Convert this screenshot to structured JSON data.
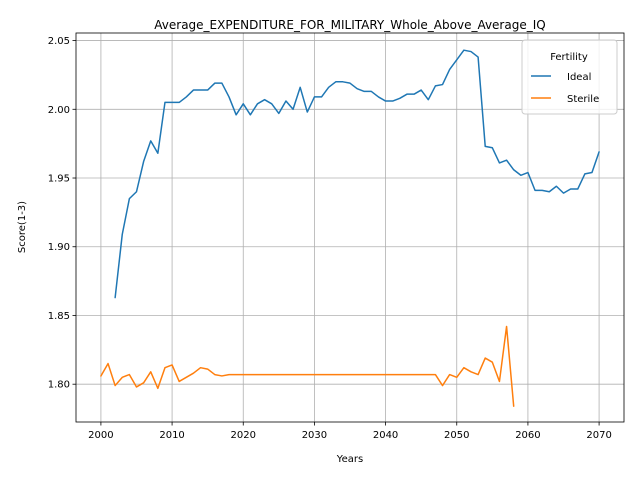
{
  "chart_data": {
    "type": "line",
    "title": "Average_EXPENDITURE_FOR_MILITARY_Whole_Above_Average_IQ",
    "xlabel": "Years",
    "ylabel": "Score(1-3)",
    "xlim": [
      1996.5,
      2073.5
    ],
    "ylim": [
      1.7725,
      2.0555
    ],
    "xticks": [
      2000,
      2010,
      2020,
      2030,
      2040,
      2050,
      2060,
      2070
    ],
    "yticks": [
      1.8,
      1.85,
      1.9,
      1.95,
      2.0,
      2.05
    ],
    "ytick_labels": [
      "1.80",
      "1.85",
      "1.90",
      "1.95",
      "2.00",
      "2.05"
    ],
    "grid": true,
    "legend": {
      "title": "Fertility",
      "placement": "top-right"
    },
    "series": [
      {
        "name": "Ideal",
        "color": "#1f77b4",
        "x": [
          2002,
          2003,
          2004,
          2005,
          2006,
          2007,
          2008,
          2009,
          2010,
          2011,
          2012,
          2013,
          2014,
          2015,
          2016,
          2017,
          2018,
          2019,
          2020,
          2021,
          2022,
          2023,
          2024,
          2025,
          2026,
          2027,
          2028,
          2029,
          2030,
          2031,
          2032,
          2033,
          2034,
          2035,
          2036,
          2037,
          2038,
          2039,
          2040,
          2041,
          2042,
          2043,
          2044,
          2045,
          2046,
          2047,
          2048,
          2049,
          2050,
          2051,
          2052,
          2053,
          2054,
          2055,
          2056,
          2057,
          2058,
          2059,
          2060,
          2061,
          2062,
          2063,
          2064,
          2065,
          2066,
          2067,
          2068,
          2069,
          2070
        ],
        "y": [
          1.863,
          1.909,
          1.935,
          1.94,
          1.962,
          1.977,
          1.968,
          2.005,
          2.005,
          2.005,
          2.009,
          2.014,
          2.014,
          2.014,
          2.019,
          2.019,
          2.009,
          1.996,
          2.004,
          1.996,
          2.004,
          2.007,
          2.004,
          1.997,
          2.006,
          2.0,
          2.016,
          1.998,
          2.009,
          2.009,
          2.016,
          2.02,
          2.02,
          2.019,
          2.015,
          2.013,
          2.013,
          2.009,
          2.006,
          2.006,
          2.008,
          2.011,
          2.011,
          2.014,
          2.007,
          2.017,
          2.018,
          2.029,
          2.036,
          2.043,
          2.042,
          2.038,
          1.973,
          1.972,
          1.961,
          1.963,
          1.956,
          1.952,
          1.954,
          1.941,
          1.941,
          1.94,
          1.944,
          1.939,
          1.942,
          1.942,
          1.953,
          1.954,
          1.969
        ]
      },
      {
        "name": "Sterile",
        "color": "#ff7f0e",
        "x": [
          2000,
          2001,
          2002,
          2003,
          2004,
          2005,
          2006,
          2007,
          2008,
          2009,
          2010,
          2011,
          2012,
          2013,
          2014,
          2015,
          2016,
          2017,
          2018,
          2019,
          2020,
          2021,
          2022,
          2023,
          2024,
          2025,
          2026,
          2027,
          2028,
          2029,
          2030,
          2031,
          2032,
          2033,
          2034,
          2035,
          2036,
          2037,
          2038,
          2039,
          2040,
          2041,
          2042,
          2043,
          2044,
          2045,
          2046,
          2047,
          2048,
          2049,
          2050,
          2051,
          2052,
          2053,
          2054,
          2055,
          2056,
          2057,
          2058
        ],
        "y": [
          1.806,
          1.815,
          1.799,
          1.805,
          1.807,
          1.798,
          1.801,
          1.809,
          1.797,
          1.812,
          1.814,
          1.802,
          1.805,
          1.808,
          1.812,
          1.811,
          1.807,
          1.806,
          1.807,
          1.807,
          1.807,
          1.807,
          1.807,
          1.807,
          1.807,
          1.807,
          1.807,
          1.807,
          1.807,
          1.807,
          1.807,
          1.807,
          1.807,
          1.807,
          1.807,
          1.807,
          1.807,
          1.807,
          1.807,
          1.807,
          1.807,
          1.807,
          1.807,
          1.807,
          1.807,
          1.807,
          1.807,
          1.807,
          1.799,
          1.807,
          1.805,
          1.812,
          1.809,
          1.807,
          1.819,
          1.816,
          1.802,
          1.842,
          1.784
        ]
      }
    ]
  },
  "colors": {
    "axes": "#000000",
    "grid": "#b0b0b0",
    "legend_border": "#cccccc"
  }
}
